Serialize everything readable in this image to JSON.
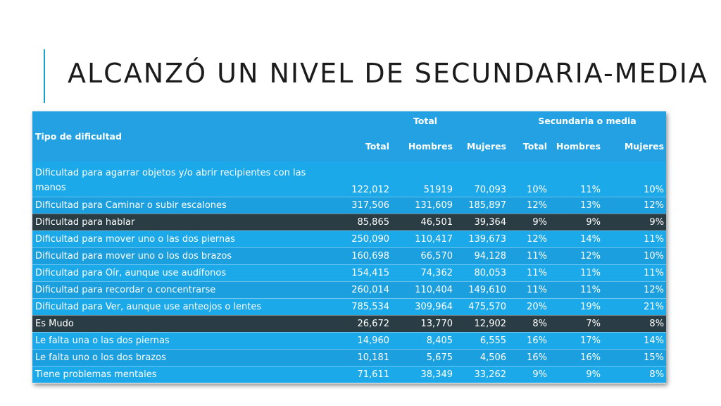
{
  "slide": {
    "title": "ALCANZÓ UN NIVEL DE SECUNDARIA-MEDIA"
  },
  "table": {
    "group_headers": {
      "row_label": "Tipo de dificultad",
      "total_group": "Total",
      "secundaria_group": "Secundaria o media"
    },
    "sub_headers": [
      "Total",
      "Hombres",
      "Mujeres",
      "Total",
      "Hombres",
      "Mujeres"
    ],
    "rows": [
      {
        "label": "Dificultad para agarrar objetos y/o abrir recipientes con las manos",
        "values": [
          "122,012",
          "51919",
          "70,093",
          "10%",
          "11%",
          "10%"
        ]
      },
      {
        "label": "Dificultad para Caminar o subir escalones",
        "values": [
          "317,506",
          "131,609",
          "185,897",
          "12%",
          "13%",
          "12%"
        ]
      },
      {
        "label": "Dificultad para hablar",
        "values": [
          "85,865",
          "46,501",
          "39,364",
          "9%",
          "9%",
          "9%"
        ]
      },
      {
        "label": "Dificultad para mover uno o las dos piernas",
        "values": [
          "250,090",
          "110,417",
          "139,673",
          "12%",
          "14%",
          "11%"
        ]
      },
      {
        "label": "Dificultad para mover uno o los dos brazos",
        "values": [
          "160,698",
          "66,570",
          "94,128",
          "11%",
          "12%",
          "10%"
        ]
      },
      {
        "label": "Dificultad para Oír, aunque use audífonos",
        "values": [
          "154,415",
          "74,362",
          "80,053",
          "11%",
          "11%",
          "11%"
        ]
      },
      {
        "label": "Dificultad para recordar o concentrarse",
        "values": [
          "260,014",
          "110,404",
          "149,610",
          "11%",
          "11%",
          "12%"
        ]
      },
      {
        "label": "Dificultad para Ver, aunque use anteojos o lentes",
        "values": [
          "785,534",
          "309,964",
          "475,570",
          "20%",
          "19%",
          "21%"
        ]
      },
      {
        "label": "Es Mudo",
        "values": [
          "26,672",
          "13,770",
          "12,902",
          "8%",
          "7%",
          "8%"
        ]
      },
      {
        "label": "Le falta una o las dos piernas",
        "values": [
          "14,960",
          "8,405",
          "6,555",
          "16%",
          "17%",
          "14%"
        ]
      },
      {
        "label": "Le falta uno o los dos brazos",
        "values": [
          "10,181",
          "5,675",
          "4,506",
          "16%",
          "16%",
          "15%"
        ]
      },
      {
        "label": "Tiene problemas mentales",
        "values": [
          "71,611",
          "38,349",
          "33,262",
          "9%",
          "9%",
          "8%"
        ]
      }
    ]
  },
  "colors": {
    "header_blue": "#23a1e2",
    "row_blue": "#1ca9e9",
    "row_dark": "#2b3d44",
    "accent": "#1aa1cf"
  }
}
